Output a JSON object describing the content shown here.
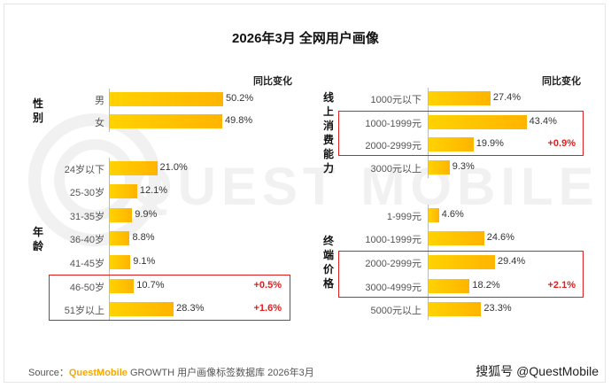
{
  "title": "2026年3月 全网用户画像",
  "watermark": "QUEST MOBILE",
  "change_header": "同比变化",
  "colors": {
    "bar_start": "#ffd200",
    "bar_end": "#ffb400",
    "highlight": "#e0201e",
    "brand": "#f5a800"
  },
  "chart_data": [
    {
      "type": "bar",
      "orientation": "horizontal",
      "unit": "%",
      "groups": [
        {
          "name": "性别",
          "rows": [
            {
              "label": "男",
              "value": 50.2,
              "display": "50.2%",
              "change": "",
              "highlight": false
            },
            {
              "label": "女",
              "value": 49.8,
              "display": "49.8%",
              "change": "",
              "highlight": false
            }
          ]
        },
        {
          "name": "年龄",
          "rows": [
            {
              "label": "24岁以下",
              "value": 21.0,
              "display": "21.0%",
              "change": "",
              "highlight": false
            },
            {
              "label": "25-30岁",
              "value": 12.1,
              "display": "12.1%",
              "change": "",
              "highlight": false
            },
            {
              "label": "31-35岁",
              "value": 9.9,
              "display": "9.9%",
              "change": "",
              "highlight": false
            },
            {
              "label": "36-40岁",
              "value": 8.8,
              "display": "8.8%",
              "change": "",
              "highlight": false
            },
            {
              "label": "41-45岁",
              "value": 9.1,
              "display": "9.1%",
              "change": "",
              "highlight": false
            },
            {
              "label": "46-50岁",
              "value": 10.7,
              "display": "10.7%",
              "change": "+0.5%",
              "highlight": true
            },
            {
              "label": "51岁以上",
              "value": 28.3,
              "display": "28.3%",
              "change": "+1.6%",
              "highlight": true
            }
          ]
        }
      ]
    },
    {
      "type": "bar",
      "orientation": "horizontal",
      "unit": "%",
      "groups": [
        {
          "name": "线上消费能力",
          "rows": [
            {
              "label": "1000元以下",
              "value": 27.4,
              "display": "27.4%",
              "change": "",
              "highlight": false
            },
            {
              "label": "1000-1999元",
              "value": 43.4,
              "display": "43.4%",
              "change": "",
              "highlight": true
            },
            {
              "label": "2000-2999元",
              "value": 19.9,
              "display": "19.9%",
              "change": "+0.9%",
              "highlight": true
            },
            {
              "label": "3000元以上",
              "value": 9.3,
              "display": "9.3%",
              "change": "",
              "highlight": false
            }
          ]
        },
        {
          "name": "终端价格",
          "rows": [
            {
              "label": "1-999元",
              "value": 4.6,
              "display": "4.6%",
              "change": "",
              "highlight": false
            },
            {
              "label": "1000-1999元",
              "value": 24.6,
              "display": "24.6%",
              "change": "",
              "highlight": false
            },
            {
              "label": "2000-2999元",
              "value": 29.4,
              "display": "29.4%",
              "change": "",
              "highlight": true
            },
            {
              "label": "3000-4999元",
              "value": 18.2,
              "display": "18.2%",
              "change": "+2.1%",
              "highlight": true
            },
            {
              "label": "5000元以上",
              "value": 23.3,
              "display": "23.3%",
              "change": "",
              "highlight": false
            }
          ]
        }
      ]
    }
  ],
  "source": {
    "prefix": "Source：",
    "brand": "QuestMobile",
    "text": "GROWTH 用户画像标签数据库 2026年3月"
  },
  "credit": "搜狐号 @QuestMobile"
}
